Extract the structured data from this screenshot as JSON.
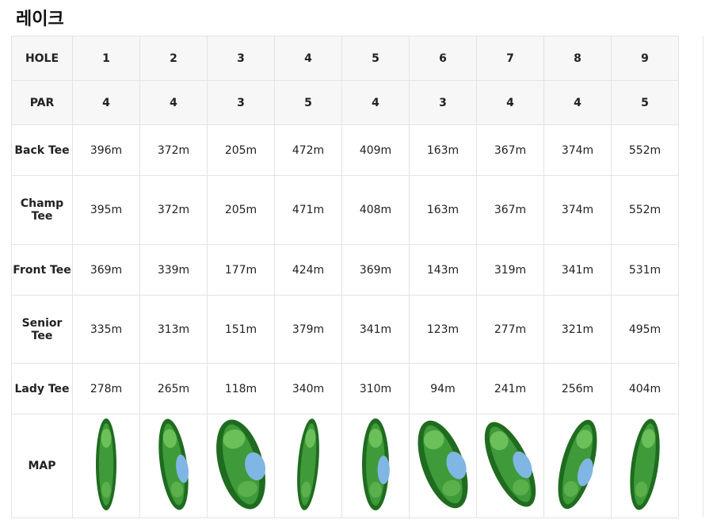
{
  "title": "레이크",
  "table": {
    "header": [
      "HOLE",
      "1",
      "2",
      "3",
      "4",
      "5",
      "6",
      "7",
      "8",
      "9"
    ],
    "rows": [
      [
        "PAR",
        "4",
        "4",
        "3",
        "5",
        "4",
        "3",
        "4",
        "4",
        "5"
      ],
      [
        "Back Tee",
        "396m",
        "372m",
        "205m",
        "472m",
        "409m",
        "163m",
        "367m",
        "374m",
        "552m"
      ],
      [
        "Champ Tee",
        "395m",
        "372m",
        "205m",
        "471m",
        "408m",
        "163m",
        "367m",
        "374m",
        "552m"
      ],
      [
        "Front Tee",
        "369m",
        "339m",
        "177m",
        "424m",
        "369m",
        "143m",
        "319m",
        "341m",
        "531m"
      ],
      [
        "Senior Tee",
        "335m",
        "313m",
        "151m",
        "379m",
        "341m",
        "123m",
        "277m",
        "321m",
        "495m"
      ],
      [
        "Lady Tee",
        "278m",
        "265m",
        "118m",
        "340m",
        "310m",
        "94m",
        "241m",
        "256m",
        "404m"
      ]
    ],
    "map_label": "MAP"
  }
}
